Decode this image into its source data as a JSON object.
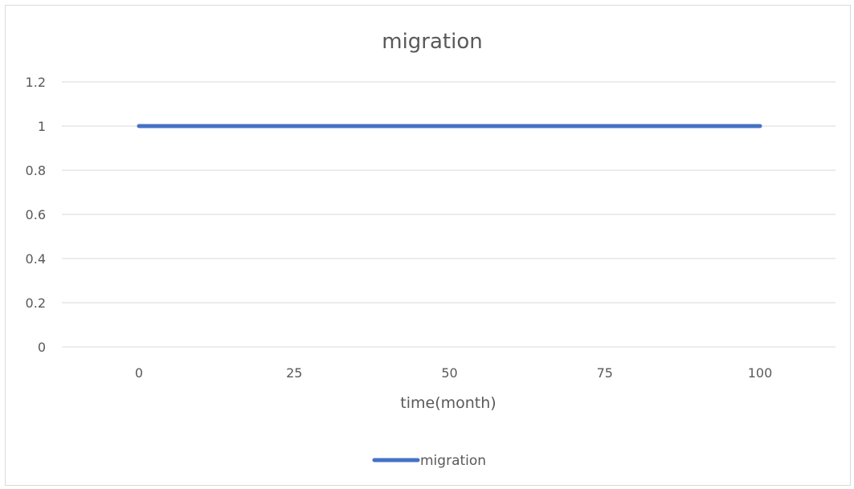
{
  "chart_data": {
    "type": "line",
    "title": "migration",
    "xlabel": "time(month)",
    "ylabel": "",
    "x_ticks": [
      0,
      25,
      50,
      75,
      100
    ],
    "y_ticks": [
      0,
      0.2,
      0.4,
      0.6,
      0.8,
      1,
      1.2
    ],
    "y_tick_labels": [
      "0",
      "0.2",
      "0.4",
      "0.6",
      "0.8",
      "1",
      "1.2"
    ],
    "xlim": [
      0,
      100
    ],
    "ylim": [
      0,
      1.2
    ],
    "grid": "horizontal",
    "legend_position": "bottom",
    "series": [
      {
        "name": "migration",
        "color": "#4472c4",
        "x": [
          0,
          100
        ],
        "y": [
          1,
          1
        ]
      }
    ]
  }
}
